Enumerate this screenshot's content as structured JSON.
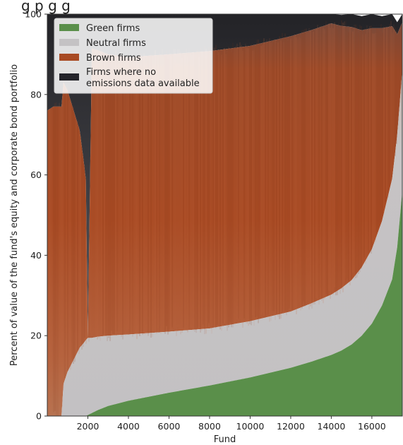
{
  "chart_data": {
    "type": "area",
    "title": "",
    "title_fragment": "g   p                      g g",
    "xlabel": "Fund",
    "ylabel": "Percent of value of the fund's equity and corporate bond portfolio",
    "xlim": [
      0,
      17500
    ],
    "ylim": [
      0,
      100
    ],
    "x_ticks": [
      "2000",
      "4000",
      "6000",
      "8000",
      "10000",
      "12000",
      "14000",
      "16000"
    ],
    "y_ticks": [
      "0",
      "20",
      "40",
      "60",
      "80",
      "100"
    ],
    "stacking_order": [
      "Green firms",
      "Neutral firms",
      "Brown firms",
      "Firms where no emissions data available"
    ],
    "legend": {
      "placement": "top-left",
      "entries": [
        {
          "label": "Green firms",
          "color": "#5a8f4a"
        },
        {
          "label": "Neutral firms",
          "color": "#c4c2c4"
        },
        {
          "label": "Brown firms",
          "color": "#a84a23"
        },
        {
          "label": "Firms where no\nemissions data available",
          "color": "#24242a"
        }
      ]
    },
    "series": [
      {
        "name": "Green firms",
        "color": "#5a8f4a",
        "x": [
          0,
          1900,
          2100,
          2500,
          3000,
          4000,
          5000,
          6000,
          7000,
          8000,
          9000,
          10000,
          11000,
          12000,
          13000,
          14000,
          14500,
          15000,
          15500,
          16000,
          16500,
          17000,
          17250,
          17500
        ],
        "values": [
          0,
          0,
          0.5,
          1.5,
          2.5,
          3.8,
          4.8,
          5.8,
          6.7,
          7.6,
          8.6,
          9.6,
          10.8,
          12.0,
          13.5,
          15.2,
          16.3,
          17.8,
          20.0,
          23.0,
          27.5,
          34.0,
          42.0,
          56.0
        ]
      },
      {
        "name": "Neutral firms",
        "x": [
          0,
          700,
          800,
          1000,
          1300,
          1600,
          1800,
          1900,
          2000,
          2200,
          3000,
          4000,
          6000,
          8000,
          10000,
          12000,
          13000,
          14000,
          15000,
          15500,
          16000,
          16500,
          17000,
          17250,
          17500
        ],
        "values": [
          0,
          0,
          8.0,
          11.0,
          14.0,
          17.0,
          18.2,
          18.9,
          19.2,
          18.7,
          17.5,
          16.5,
          15.2,
          14.2,
          14.0,
          14.0,
          14.5,
          15.0,
          16.0,
          17.0,
          18.5,
          21.0,
          25.0,
          28.0,
          30.0
        ]
      },
      {
        "name": "Brown firms",
        "x": [
          0,
          300,
          700,
          800,
          1000,
          1300,
          1600,
          1800,
          1900,
          2000,
          2200,
          3000,
          4000,
          6000,
          8000,
          10000,
          12000,
          14000,
          15000,
          16000,
          16500,
          17000,
          17500
        ],
        "values": [
          76.0,
          77.0,
          77.0,
          75.0,
          70.0,
          62.0,
          54.0,
          45.0,
          40.0,
          0,
          72.0,
          70.0,
          69.0,
          69.0,
          69.0,
          68.5,
          68.5,
          67.5,
          63.0,
          55.0,
          48.0,
          38.0,
          12.0
        ]
      },
      {
        "name": "Firms where no emissions data available",
        "color": "#24242a",
        "x": [
          0,
          300,
          700,
          800,
          1000,
          1300,
          1600,
          1800,
          1900,
          2000,
          2200,
          3000,
          4000,
          6000,
          8000,
          10000,
          12000,
          14000,
          15000,
          15500,
          16000,
          16500,
          17000,
          17250,
          17500
        ],
        "values": [
          24.0,
          23.0,
          23.0,
          17.0,
          19.0,
          24.0,
          29.0,
          36.8,
          41.1,
          80.8,
          8.6,
          10.0,
          10.7,
          10.0,
          9.2,
          7.9,
          6.5,
          2.3,
          3.2,
          3.5,
          3.5,
          3.0,
          3.0,
          3.0,
          2.0
        ]
      }
    ],
    "grid": false
  }
}
